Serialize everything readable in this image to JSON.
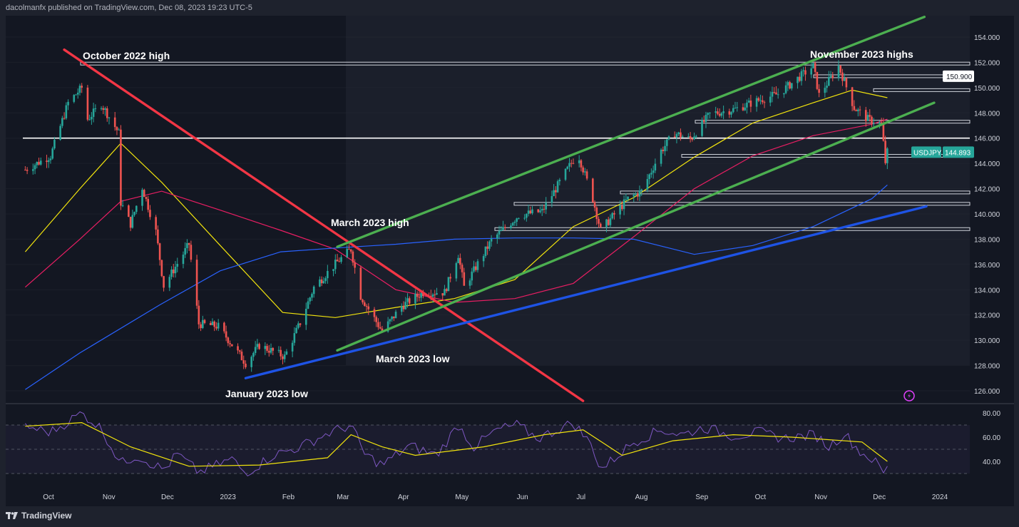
{
  "header": {
    "publisher_line": "dacolmanfx published on TradingView.com, Dec 08, 2023 19:23 UTC-5"
  },
  "footer": {
    "brand": "TradingView"
  },
  "chart_data": {
    "type": "candlestick",
    "symbol": "USDJPY",
    "last_price": "144.893",
    "level_label": "150.900",
    "y_ticks": [
      "154.000",
      "152.000",
      "150.000",
      "148.000",
      "146.000",
      "144.000",
      "142.000",
      "140.000",
      "138.000",
      "136.000",
      "134.000",
      "132.000",
      "130.000",
      "128.000",
      "126.000"
    ],
    "ylim": [
      125.2,
      155.6
    ],
    "x_ticks": [
      "Oct",
      "Nov",
      "Dec",
      "2023",
      "Feb",
      "Mar",
      "Apr",
      "May",
      "Jun",
      "Jul",
      "Aug",
      "Sep",
      "Oct",
      "Nov",
      "Dec",
      "2024"
    ],
    "annotations": [
      {
        "text": "October 2022 high",
        "date": "2022-10-21",
        "price": 152.0
      },
      {
        "text": "November 2023 highs",
        "date": "2023-11-13",
        "price": 152.0
      },
      {
        "text": "March 2023 high",
        "date": "2023-03-08",
        "price": 137.9
      },
      {
        "text": "March 2023 low",
        "date": "2023-03-24",
        "price": 129.6
      },
      {
        "text": "January 2023 low",
        "date": "2023-01-16",
        "price": 127.2
      }
    ],
    "price_path": [
      [
        "2022-09-22",
        143.5
      ],
      [
        "2022-10-05",
        144.6
      ],
      [
        "2022-10-14",
        148.8
      ],
      [
        "2022-10-21",
        150.0
      ],
      [
        "2022-10-24",
        147.5
      ],
      [
        "2022-10-31",
        148.7
      ],
      [
        "2022-11-09",
        146.4
      ],
      [
        "2022-11-10",
        140.9
      ],
      [
        "2022-11-15",
        139.2
      ],
      [
        "2022-11-21",
        142.1
      ],
      [
        "2022-11-28",
        138.6
      ],
      [
        "2022-12-02",
        134.3
      ],
      [
        "2022-12-15",
        137.6
      ],
      [
        "2022-12-20",
        131.3
      ],
      [
        "2022-12-30",
        131.1
      ],
      [
        "2023-01-13",
        128.2
      ],
      [
        "2023-01-20",
        129.6
      ],
      [
        "2023-02-02",
        128.7
      ],
      [
        "2023-02-10",
        131.4
      ],
      [
        "2023-02-17",
        134.2
      ],
      [
        "2023-03-01",
        136.2
      ],
      [
        "2023-03-08",
        137.2
      ],
      [
        "2023-03-13",
        133.5
      ],
      [
        "2023-03-24",
        130.7
      ],
      [
        "2023-04-03",
        132.7
      ],
      [
        "2023-04-14",
        133.8
      ],
      [
        "2023-04-25",
        133.8
      ],
      [
        "2023-05-02",
        136.8
      ],
      [
        "2023-05-05",
        134.2
      ],
      [
        "2023-05-19",
        137.9
      ],
      [
        "2023-06-02",
        139.9
      ],
      [
        "2023-06-14",
        140.2
      ],
      [
        "2023-06-30",
        144.3
      ],
      [
        "2023-07-03",
        144.5
      ],
      [
        "2023-07-10",
        141.2
      ],
      [
        "2023-07-14",
        138.7
      ],
      [
        "2023-07-28",
        141.2
      ],
      [
        "2023-08-04",
        141.8
      ],
      [
        "2023-08-14",
        145.0
      ],
      [
        "2023-08-21",
        146.4
      ],
      [
        "2023-08-29",
        145.9
      ],
      [
        "2023-09-08",
        147.9
      ],
      [
        "2023-09-21",
        148.3
      ],
      [
        "2023-10-03",
        149.0
      ],
      [
        "2023-10-13",
        149.5
      ],
      [
        "2023-10-31",
        151.7
      ],
      [
        "2023-11-03",
        149.4
      ],
      [
        "2023-11-13",
        151.7
      ],
      [
        "2023-11-21",
        148.4
      ],
      [
        "2023-11-28",
        147.5
      ],
      [
        "2023-12-05",
        147.1
      ],
      [
        "2023-12-07",
        144.1
      ],
      [
        "2023-12-08",
        144.9
      ]
    ],
    "horizontal_levels": [
      151.9,
      150.9,
      149.8,
      147.3,
      146.0,
      144.6,
      141.7,
      140.8,
      138.8
    ],
    "trendlines": [
      {
        "color": "#f23645",
        "from": [
          "2022-10-12",
          153.0
        ],
        "to": [
          "2023-07-05",
          125.2
        ]
      },
      {
        "color": "#4caf50",
        "from": [
          "2023-03-01",
          137.4
        ],
        "to": [
          "2023-12-27",
          155.6
        ]
      },
      {
        "color": "#4caf50",
        "from": [
          "2023-03-01",
          129.2
        ],
        "to": [
          "2024-01-01",
          148.8
        ]
      },
      {
        "color": "#1e53e5",
        "from": [
          "2023-01-13",
          127.0
        ],
        "to": [
          "2023-12-28",
          140.6
        ]
      }
    ],
    "moving_averages": [
      {
        "color": "#f2e40d",
        "points": [
          [
            "2022-09-22",
            137.0
          ],
          [
            "2022-10-20",
            142.0
          ],
          [
            "2022-11-10",
            145.6
          ],
          [
            "2022-12-01",
            142.5
          ],
          [
            "2022-12-31",
            137.5
          ],
          [
            "2023-02-01",
            132.2
          ],
          [
            "2023-02-28",
            131.8
          ],
          [
            "2023-03-31",
            132.6
          ],
          [
            "2023-04-30",
            133.3
          ],
          [
            "2023-05-31",
            134.8
          ],
          [
            "2023-06-30",
            139.0
          ],
          [
            "2023-07-31",
            141.3
          ],
          [
            "2023-08-31",
            144.5
          ],
          [
            "2023-09-30",
            147.2
          ],
          [
            "2023-10-31",
            148.8
          ],
          [
            "2023-11-20",
            149.8
          ],
          [
            "2023-12-08",
            149.2
          ]
        ]
      },
      {
        "color": "#e91e63",
        "points": [
          [
            "2022-09-22",
            134.2
          ],
          [
            "2022-10-20",
            138.0
          ],
          [
            "2022-11-10",
            141.0
          ],
          [
            "2022-12-01",
            141.8
          ],
          [
            "2022-12-31",
            140.3
          ],
          [
            "2023-01-31",
            138.7
          ],
          [
            "2023-02-28",
            137.2
          ],
          [
            "2023-03-31",
            134.0
          ],
          [
            "2023-04-30",
            133.0
          ],
          [
            "2023-05-31",
            133.3
          ],
          [
            "2023-06-30",
            134.5
          ],
          [
            "2023-07-31",
            138.2
          ],
          [
            "2023-08-31",
            142.0
          ],
          [
            "2023-09-30",
            144.6
          ],
          [
            "2023-10-31",
            146.2
          ],
          [
            "2023-11-30",
            147.1
          ],
          [
            "2023-12-08",
            147.5
          ]
        ]
      },
      {
        "color": "#2962ff",
        "points": [
          [
            "2022-09-22",
            126.1
          ],
          [
            "2022-10-20",
            129.0
          ],
          [
            "2022-11-30",
            132.8
          ],
          [
            "2022-12-31",
            135.5
          ],
          [
            "2023-01-31",
            137.0
          ],
          [
            "2023-02-28",
            137.3
          ],
          [
            "2023-03-31",
            137.6
          ],
          [
            "2023-04-30",
            138.0
          ],
          [
            "2023-05-31",
            138.1
          ],
          [
            "2023-06-30",
            138.1
          ],
          [
            "2023-07-31",
            138.0
          ],
          [
            "2023-08-31",
            136.8
          ],
          [
            "2023-09-30",
            137.5
          ],
          [
            "2023-10-31",
            139.0
          ],
          [
            "2023-11-30",
            141.2
          ],
          [
            "2023-12-08",
            142.3
          ]
        ]
      }
    ],
    "rsi": {
      "y_ticks": [
        "80.00",
        "60.00",
        "40.00"
      ],
      "ylim": [
        27,
        84
      ],
      "levels": [
        70,
        50,
        30
      ],
      "points": [
        [
          "2022-09-22",
          69
        ],
        [
          "2022-10-05",
          64
        ],
        [
          "2022-10-21",
          80
        ],
        [
          "2022-10-31",
          67
        ],
        [
          "2022-11-10",
          38
        ],
        [
          "2022-11-18",
          45
        ],
        [
          "2022-12-02",
          33
        ],
        [
          "2022-12-09",
          46
        ],
        [
          "2022-12-20",
          31
        ],
        [
          "2023-01-06",
          42
        ],
        [
          "2023-01-13",
          30
        ],
        [
          "2023-01-27",
          45
        ],
        [
          "2023-02-10",
          52
        ],
        [
          "2023-02-24",
          63
        ],
        [
          "2023-03-08",
          70
        ],
        [
          "2023-03-15",
          46
        ],
        [
          "2023-03-24",
          37
        ],
        [
          "2023-04-07",
          53
        ],
        [
          "2023-04-21",
          45
        ],
        [
          "2023-05-02",
          70
        ],
        [
          "2023-05-10",
          52
        ],
        [
          "2023-05-22",
          66
        ],
        [
          "2023-06-01",
          70
        ],
        [
          "2023-06-12",
          59
        ],
        [
          "2023-06-30",
          72
        ],
        [
          "2023-07-10",
          52
        ],
        [
          "2023-07-14",
          33
        ],
        [
          "2023-07-31",
          56
        ],
        [
          "2023-08-14",
          66
        ],
        [
          "2023-08-25",
          62
        ],
        [
          "2023-09-05",
          68
        ],
        [
          "2023-09-20",
          61
        ],
        [
          "2023-10-03",
          64
        ],
        [
          "2023-10-16",
          59
        ],
        [
          "2023-11-01",
          62
        ],
        [
          "2023-11-08",
          52
        ],
        [
          "2023-11-16",
          63
        ],
        [
          "2023-11-24",
          48
        ],
        [
          "2023-12-01",
          41
        ],
        [
          "2023-12-07",
          29
        ],
        [
          "2023-12-08",
          34
        ]
      ],
      "signal": [
        [
          "2022-09-22",
          69
        ],
        [
          "2022-10-21",
          72
        ],
        [
          "2022-11-15",
          52
        ],
        [
          "2022-12-15",
          36
        ],
        [
          "2023-01-20",
          37
        ],
        [
          "2023-02-24",
          43
        ],
        [
          "2023-03-08",
          62
        ],
        [
          "2023-03-24",
          52
        ],
        [
          "2023-04-10",
          45
        ],
        [
          "2023-05-15",
          52
        ],
        [
          "2023-06-15",
          62
        ],
        [
          "2023-07-05",
          66
        ],
        [
          "2023-07-25",
          45
        ],
        [
          "2023-08-20",
          57
        ],
        [
          "2023-09-20",
          62
        ],
        [
          "2023-10-20",
          60
        ],
        [
          "2023-11-25",
          56
        ],
        [
          "2023-12-08",
          40
        ]
      ]
    }
  },
  "colors": {
    "background": "#131722",
    "frame": "#1e222d",
    "up": "#26a69a",
    "down": "#ef5350",
    "grid": "#2a2e39",
    "text": "#d1d4dc",
    "rsi": "#7e57c2",
    "rsi_signal": "#f2e40d"
  }
}
